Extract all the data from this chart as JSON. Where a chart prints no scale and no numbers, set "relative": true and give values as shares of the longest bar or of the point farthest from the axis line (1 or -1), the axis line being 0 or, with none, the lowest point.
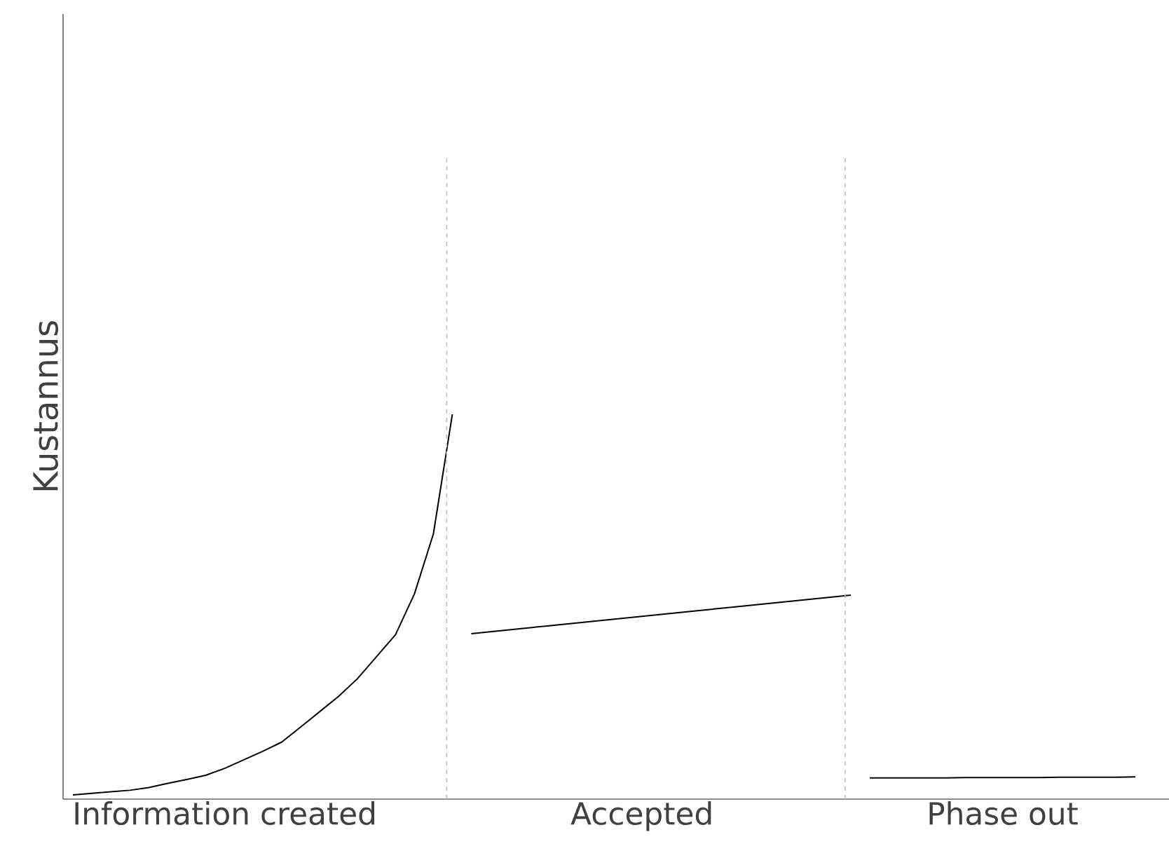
{
  "chart_data": {
    "type": "line",
    "ylabel": "Kustannus",
    "relative": true,
    "categories": [
      null,
      null,
      null,
      null,
      null,
      null,
      null,
      null,
      "Information created",
      null,
      null,
      null,
      null,
      null,
      null,
      null,
      null,
      null,
      null,
      null,
      null,
      null,
      null,
      null,
      null,
      null,
      null,
      null,
      null,
      null,
      "Accepted",
      null,
      null,
      null,
      null,
      null,
      null,
      null,
      null,
      null,
      null,
      null,
      null,
      null,
      null,
      null,
      null,
      null,
      null,
      "Phase out",
      null,
      null,
      null,
      null,
      null,
      null,
      null
    ],
    "series": [
      {
        "color": "#000000",
        "values": [
          0.011,
          0.015,
          0.019,
          0.023,
          0.03,
          0.041,
          0.051,
          0.062,
          0.08,
          0.102,
          0.124,
          0.148,
          0.187,
          0.227,
          0.267,
          0.313,
          0.37,
          0.427,
          0.533,
          0.689,
          1.0,
          null,
          null,
          null,
          null,
          null,
          null,
          null,
          null,
          null,
          null,
          null,
          null,
          null,
          null,
          null,
          null,
          null,
          null,
          null,
          null,
          null,
          null,
          null,
          null,
          null,
          null,
          null,
          null,
          null,
          null,
          null,
          null,
          null,
          null,
          null,
          null
        ]
      },
      {
        "color": "#000000",
        "values": [
          null,
          null,
          null,
          null,
          null,
          null,
          null,
          null,
          null,
          null,
          null,
          null,
          null,
          null,
          null,
          null,
          null,
          null,
          null,
          null,
          null,
          0.43,
          0.435,
          0.44,
          0.445,
          0.45,
          0.455,
          0.46,
          0.465,
          0.47,
          0.475,
          0.48,
          0.485,
          0.49,
          0.495,
          0.5,
          0.505,
          0.51,
          0.515,
          0.52,
          0.525,
          0.53,
          null,
          null,
          null,
          null,
          null,
          null,
          null,
          null,
          null,
          null,
          null,
          null,
          null,
          null,
          null
        ]
      },
      {
        "color": "#000000",
        "values": [
          null,
          null,
          null,
          null,
          null,
          null,
          null,
          null,
          null,
          null,
          null,
          null,
          null,
          null,
          null,
          null,
          null,
          null,
          null,
          null,
          null,
          null,
          null,
          null,
          null,
          null,
          null,
          null,
          null,
          null,
          null,
          null,
          null,
          null,
          null,
          null,
          null,
          null,
          null,
          null,
          null,
          null,
          0.055,
          0.055,
          0.055,
          0.055,
          0.055,
          0.056,
          0.056,
          0.056,
          0.056,
          0.056,
          0.057,
          0.057,
          0.057,
          0.057,
          0.058
        ]
      }
    ],
    "marker": "none",
    "line_style": "solid"
  }
}
